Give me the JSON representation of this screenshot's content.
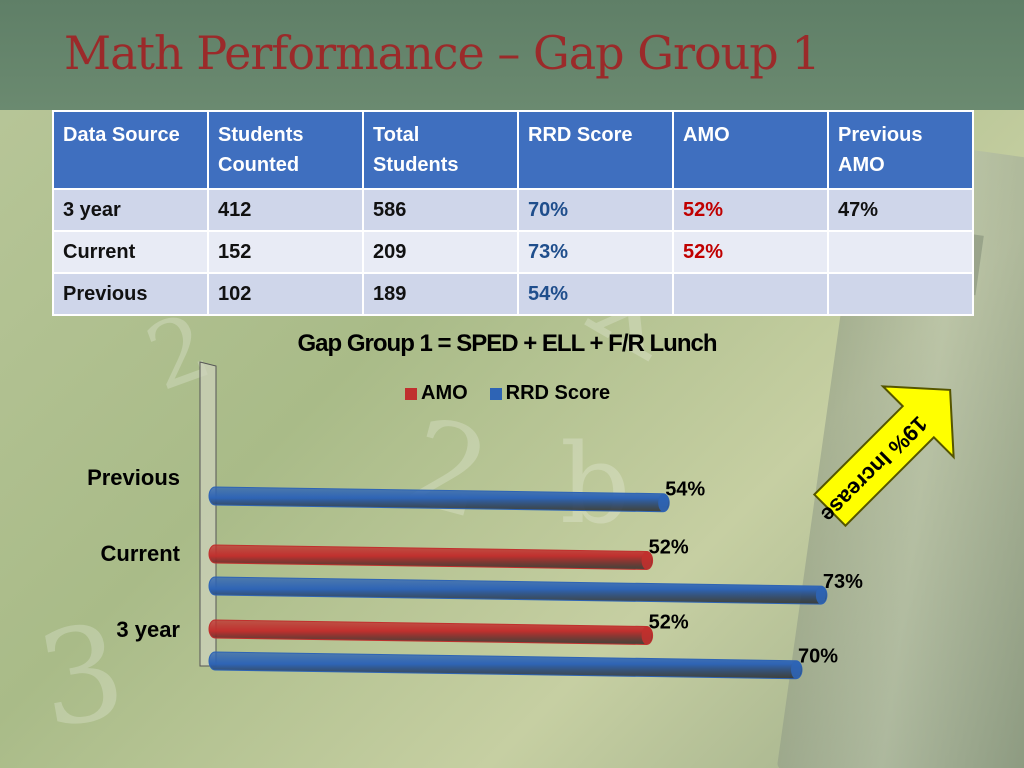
{
  "title": "Math Performance – Gap Group 1",
  "table": {
    "headers": [
      "Data Source",
      "Students Counted",
      "Total Students",
      "RRD Score",
      "AMO",
      "Previous AMO"
    ],
    "rows": [
      [
        "3 year",
        "412",
        "586",
        "70%",
        "52%",
        "47%"
      ],
      [
        "Current",
        "152",
        "209",
        "73%",
        "52%",
        ""
      ],
      [
        "Previous",
        "102",
        "189",
        "54%",
        "",
        ""
      ]
    ]
  },
  "colors": {
    "title": "#9b2a2a",
    "amo": "#c0302e",
    "rrd": "#2e64b5",
    "header": "#3f6fbf",
    "rrd_text": "#1f4e8c",
    "amo_text": "#c00000",
    "callout": "#ffff00"
  },
  "callout": {
    "text": "19% Increase",
    "icon": "up-arrow-icon"
  },
  "chart_data": {
    "type": "bar",
    "orientation": "horizontal",
    "title": "Gap Group 1 = SPED + ELL + F/R Lunch",
    "categories": [
      "3 year",
      "Current",
      "Previous"
    ],
    "series": [
      {
        "name": "AMO",
        "values": [
          52,
          52,
          null
        ],
        "labels": [
          "52%",
          "52%",
          ""
        ]
      },
      {
        "name": "RRD Score",
        "values": [
          70,
          73,
          54
        ],
        "labels": [
          "70%",
          "73%",
          "54%"
        ]
      }
    ],
    "legend": "top",
    "xlim": [
      0,
      80
    ],
    "grid": false
  }
}
